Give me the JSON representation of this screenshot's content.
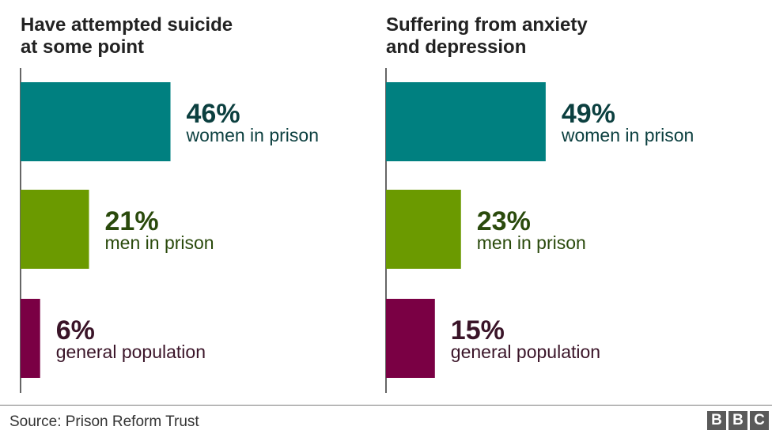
{
  "chart_data": [
    {
      "type": "bar",
      "title": "Have attempted suicide\nat some point",
      "categories": [
        "women in prison",
        "men in prison",
        "general population"
      ],
      "values": [
        46,
        21,
        6
      ],
      "value_labels": [
        "46%",
        "21%",
        "6%"
      ],
      "xlim": [
        0,
        100
      ],
      "orientation": "horizontal",
      "colors": [
        "#008080",
        "#6b9a00",
        "#7a0044"
      ],
      "label_colors": [
        "#0b3f3f",
        "#2a4a0c",
        "#3a1428"
      ],
      "grid": false
    },
    {
      "type": "bar",
      "title": "Suffering from anxiety\nand depression",
      "categories": [
        "women in prison",
        "men in prison",
        "general population"
      ],
      "values": [
        49,
        23,
        15
      ],
      "value_labels": [
        "49%",
        "23%",
        "15%"
      ],
      "xlim": [
        0,
        100
      ],
      "orientation": "horizontal",
      "colors": [
        "#008080",
        "#6b9a00",
        "#7a0044"
      ],
      "label_colors": [
        "#0b3f3f",
        "#2a4a0c",
        "#3a1428"
      ],
      "grid": false
    }
  ],
  "footer": {
    "source": "Source: Prison Reform Trust",
    "logo_letters": [
      "B",
      "B",
      "C"
    ]
  }
}
